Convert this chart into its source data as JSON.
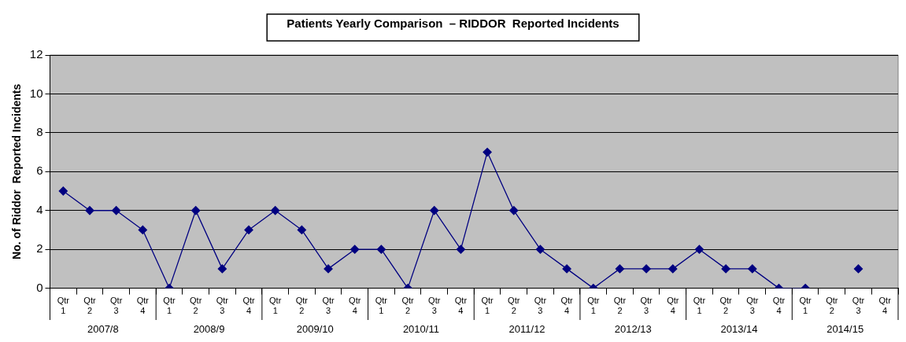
{
  "chart_data": {
    "type": "line",
    "title": "Patients Yearly Comparison  – RIDDOR  Reported Incidents",
    "ylabel": "No. of Riddor  Reported Incidents",
    "categories": [
      "Qtr 1",
      "Qtr 2",
      "Qtr 3",
      "Qtr 4",
      "Qtr 1",
      "Qtr 2",
      "Qtr 3",
      "Qtr 4",
      "Qtr 1",
      "Qtr 2",
      "Qtr 3",
      "Qtr 4",
      "Qtr 1",
      "Qtr 2",
      "Qtr 3",
      "Qtr 4",
      "Qtr 1",
      "Qtr 2",
      "Qtr 3",
      "Qtr 4",
      "Qtr 1",
      "Qtr 2",
      "Qtr 3",
      "Qtr 4",
      "Qtr 1",
      "Qtr 2",
      "Qtr 3",
      "Qtr 4",
      "Qtr 1",
      "Qtr 2",
      "Qtr 3",
      "Qtr 4"
    ],
    "annotations": [
      "2007/8",
      "2008/9",
      "2009/10",
      "2010/11",
      "2011/12",
      "2012/13",
      "2013/14",
      "2014/15"
    ],
    "series": [
      {
        "color": "#000080",
        "values": [
          5,
          4,
          4,
          3,
          0,
          4,
          1,
          3,
          4,
          3,
          1,
          2,
          2,
          0,
          4,
          2,
          7,
          4,
          2,
          1,
          0,
          1,
          1,
          1,
          2,
          1,
          1,
          0,
          0,
          null,
          1,
          null
        ]
      }
    ],
    "ylim": [
      0,
      12
    ],
    "yticks": [
      0,
      2,
      4,
      6,
      8,
      10,
      12
    ],
    "grid": "y",
    "legend": false,
    "marker": "diamond",
    "line_style": "solid"
  }
}
